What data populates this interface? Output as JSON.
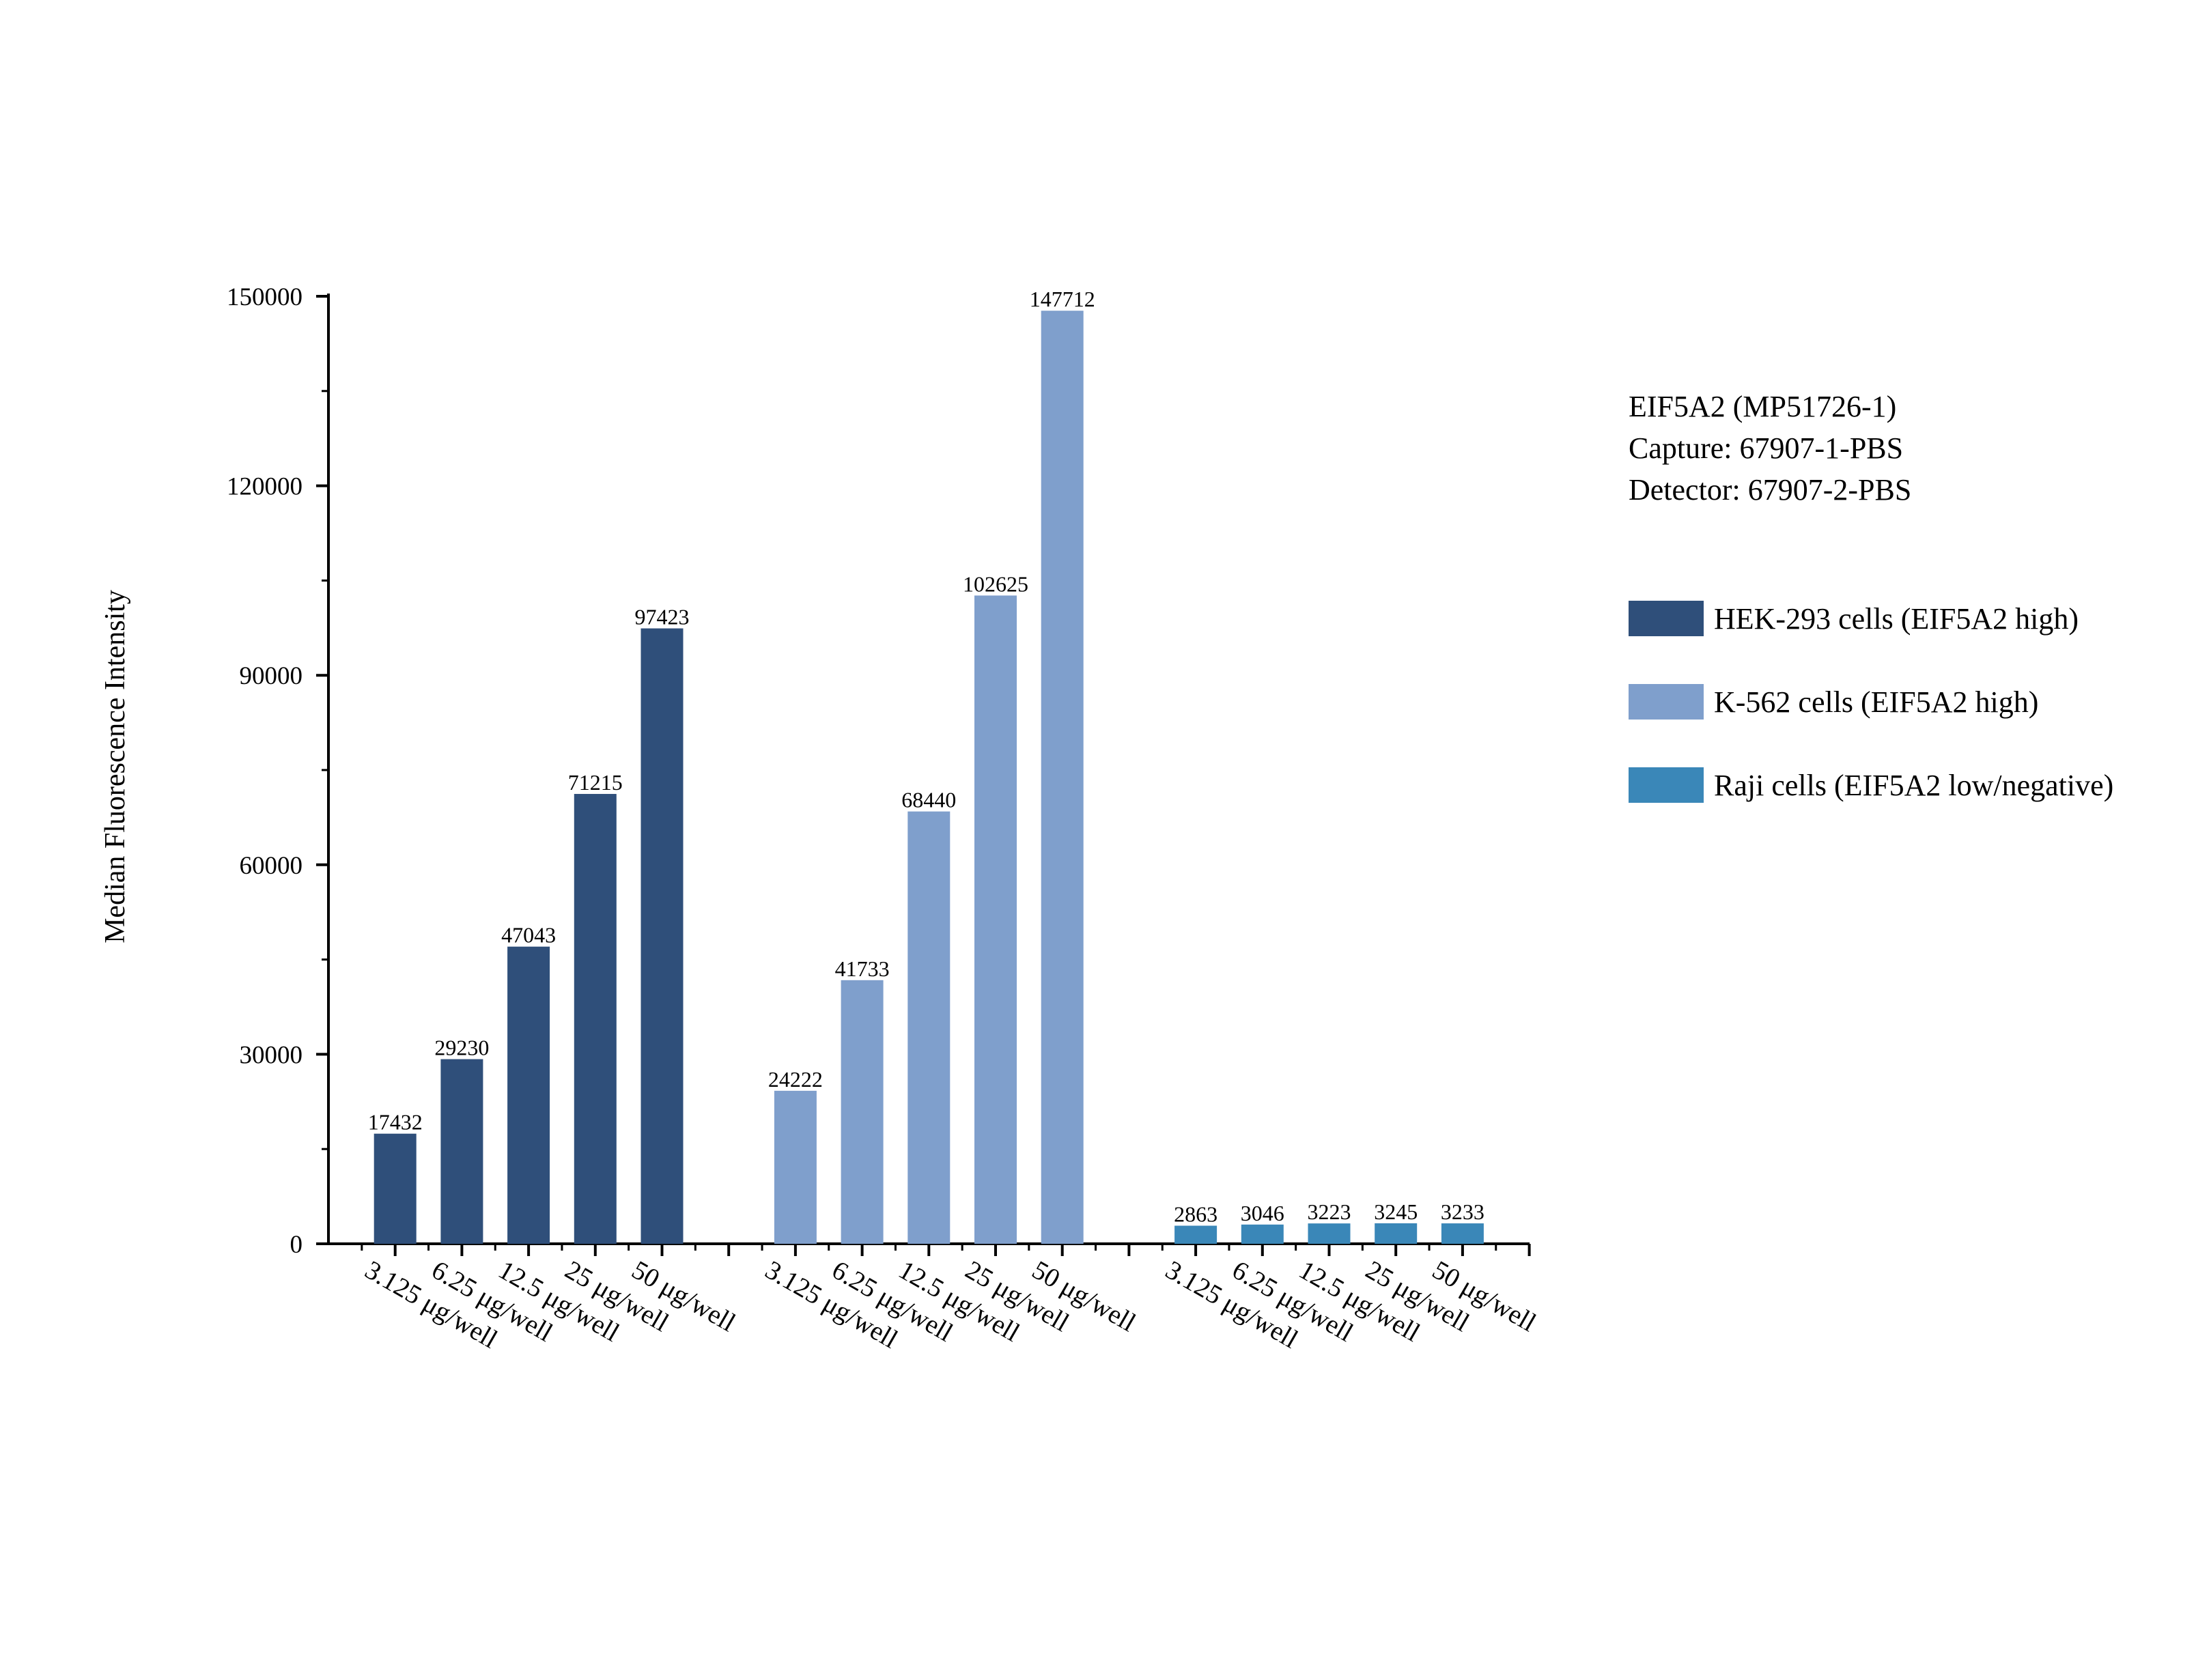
{
  "chart_data": {
    "type": "bar",
    "title": "",
    "xlabel": "",
    "ylabel": "Median Fluorescence Intensity",
    "ylim": [
      0,
      150000
    ],
    "yticks": [
      0,
      30000,
      60000,
      90000,
      120000,
      150000
    ],
    "grid": false,
    "legend_position": "right",
    "info_lines": [
      "EIF5A2 (MP51726-1)",
      "Capture: 67907-1-PBS",
      "Detector: 67907-2-PBS"
    ],
    "categories": [
      "3.125 μg/well",
      "6.25 μg/well",
      "12.5 μg/well",
      "25 μg/well",
      "50 μg/well"
    ],
    "series": [
      {
        "name": "HEK-293 cells (EIF5A2 high)",
        "color": "#2f4f7a",
        "values": [
          17432,
          29230,
          47043,
          71215,
          97423
        ]
      },
      {
        "name": "K-562 cells (EIF5A2 high)",
        "color": "#7f9fcc",
        "values": [
          24222,
          41733,
          68440,
          102625,
          147712
        ]
      },
      {
        "name": "Raji cells (EIF5A2 low/negative)",
        "color": "#3a87b8",
        "values": [
          2863,
          3046,
          3223,
          3245,
          3233
        ]
      }
    ]
  }
}
